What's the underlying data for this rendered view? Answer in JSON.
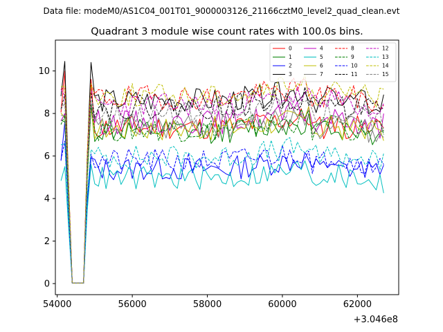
{
  "suptitle": "Data file: modeM0/AS1C04_001T01_9000003126_21166cztM0_level2_quad_clean.evt",
  "chart_data": {
    "type": "line",
    "title": "Quadrant 3 module wise count rates with 100.0s bins.",
    "xlabel": "",
    "ylabel": "",
    "x_offset_label": "+3.046e8",
    "xlim": [
      53950,
      63100
    ],
    "ylim": [
      -0.52,
      11.45
    ],
    "xticks": [
      54000,
      56000,
      58000,
      60000,
      62000
    ],
    "xtick_labels": [
      "54000",
      "56000",
      "58000",
      "60000",
      "62000"
    ],
    "yticks": [
      0,
      2,
      4,
      6,
      8,
      10
    ],
    "ytick_labels": [
      "0",
      "2",
      "4",
      "6",
      "8",
      "10"
    ],
    "grid": false,
    "legend_position": "upper right",
    "x_start": 54100,
    "x_step": 100,
    "n_points": 87,
    "series": [
      {
        "name": "0",
        "color": "#ff0000",
        "linestyle": "solid",
        "base": 7.35,
        "spikes": [
          10.0,
          9.6,
          9.1
        ],
        "dip": 4.0,
        "dip2": 6.2
      },
      {
        "name": "1",
        "color": "#008000",
        "linestyle": "solid",
        "base": 7.15,
        "spikes": [
          7.6,
          8.3,
          8.8
        ],
        "dip": 4.5,
        "dip2": 6.4
      },
      {
        "name": "2",
        "color": "#0000ff",
        "linestyle": "solid",
        "base": 5.4,
        "spikes": [
          7.6,
          5.9,
          6.0
        ],
        "dip": 3.2,
        "dip2": 4.4
      },
      {
        "name": "3",
        "color": "#000000",
        "linestyle": "solid",
        "base": 8.6,
        "spikes": [
          10.45,
          10.4,
          9.3
        ],
        "dip": 4.4,
        "dip2": 6.6
      },
      {
        "name": "4",
        "color": "#c000c0",
        "linestyle": "solid",
        "base": 7.6,
        "spikes": [
          8.0,
          8.3,
          8.9
        ],
        "dip": 4.5,
        "dip2": 6.8
      },
      {
        "name": "5",
        "color": "#00bfbf",
        "linestyle": "solid",
        "base": 4.95,
        "spikes": [
          5.5,
          5.6,
          5.4
        ],
        "dip": 2.85,
        "dip2": 3.5
      },
      {
        "name": "6",
        "color": "#bfbf00",
        "linestyle": "solid",
        "base": 7.3,
        "spikes": [
          7.8,
          8.3,
          8.0
        ],
        "dip": 4.6,
        "dip2": 6.5
      },
      {
        "name": "7",
        "color": "#808080",
        "linestyle": "solid",
        "base": 7.35,
        "spikes": [
          7.9,
          8.4,
          8.2
        ],
        "dip": 4.7,
        "dip2": 6.4
      },
      {
        "name": "8",
        "color": "#ff0000",
        "linestyle": "dashed",
        "base": 8.75,
        "spikes": [
          9.2,
          9.4,
          9.3
        ],
        "dip": 5.3,
        "dip2": 6.5
      },
      {
        "name": "9",
        "color": "#008000",
        "linestyle": "dashed",
        "base": 7.25,
        "spikes": [
          7.9,
          8.4,
          8.5
        ],
        "dip": 4.6,
        "dip2": 6.2
      },
      {
        "name": "10",
        "color": "#0000ff",
        "linestyle": "dashed",
        "base": 5.75,
        "spikes": [
          6.7,
          6.1,
          6.3
        ],
        "dip": 3.6,
        "dip2": 4.6
      },
      {
        "name": "11",
        "color": "#000000",
        "linestyle": "dashed",
        "base": 8.3,
        "spikes": [
          8.9,
          9.0,
          9.0
        ],
        "dip": 5.0,
        "dip2": 6.6
      },
      {
        "name": "12",
        "color": "#c000c0",
        "linestyle": "dashed",
        "base": 8.4,
        "spikes": [
          8.8,
          9.1,
          9.0
        ],
        "dip": 5.1,
        "dip2": 7.0
      },
      {
        "name": "13",
        "color": "#00bfbf",
        "linestyle": "dashed",
        "base": 5.95,
        "spikes": [
          6.6,
          6.3,
          6.6
        ],
        "dip": 3.4,
        "dip2": 4.8
      },
      {
        "name": "14",
        "color": "#bfbf00",
        "linestyle": "dashed",
        "base": 8.85,
        "spikes": [
          9.3,
          9.4,
          9.5
        ],
        "dip": 5.4,
        "dip2": 7.2
      },
      {
        "name": "15",
        "color": "#808080",
        "linestyle": "dashed",
        "base": 7.95,
        "spikes": [
          8.5,
          8.6,
          8.6
        ],
        "dip": 4.9,
        "dip2": 6.6
      }
    ]
  }
}
